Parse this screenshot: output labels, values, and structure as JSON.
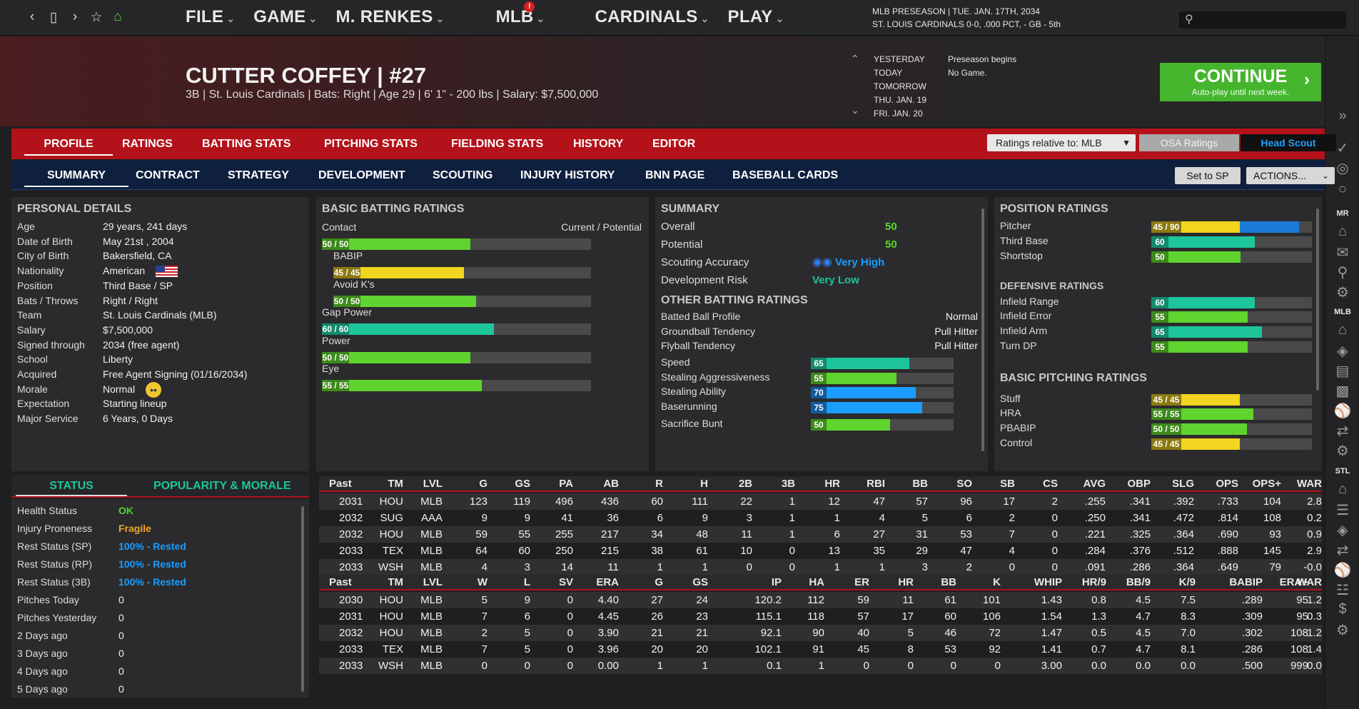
{
  "topbar": {
    "menu": [
      "FILE",
      "GAME",
      "M. RENKES",
      "MLB",
      "CARDINALS",
      "PLAY"
    ],
    "mlb_badge": "!",
    "info_line1": "MLB PRESEASON  |  TUE. JAN. 17TH, 2034",
    "info_line2": "ST. LOUIS CARDINALS  0-0, .000 PCT, - GB - 5th"
  },
  "player": {
    "name": "CUTTER COFFEY  |  #27",
    "sub": "3B | St. Louis Cardinals  |  Bats: Right  |  Age 29  |  6' 1\"  - 200 lbs  |  Salary: $7,500,000"
  },
  "calendar": {
    "dates": [
      "YESTERDAY",
      "TODAY",
      "TOMORROW",
      "THU. JAN. 19",
      "FRI. JAN. 20"
    ],
    "events": [
      "Preseason begins",
      "No Game."
    ]
  },
  "continue": {
    "title": "CONTINUE",
    "sub": "Auto-play until next week."
  },
  "tabs1": {
    "items": [
      "PROFILE",
      "RATINGS",
      "BATTING STATS",
      "PITCHING STATS",
      "FIELDING STATS",
      "HISTORY",
      "EDITOR"
    ],
    "ratings_relative": "Ratings relative to: MLB",
    "osa": "OSA Ratings",
    "scout": "Head Scout"
  },
  "tabs2": {
    "items": [
      "SUMMARY",
      "CONTRACT",
      "STRATEGY",
      "DEVELOPMENT",
      "SCOUTING",
      "INJURY HISTORY",
      "BNN PAGE",
      "BASEBALL CARDS"
    ],
    "set_sp": "Set to SP",
    "actions": "ACTIONS..."
  },
  "personal": {
    "title": "PERSONAL DETAILS",
    "rows": [
      [
        "Age",
        "29 years, 241 days"
      ],
      [
        "Date of Birth",
        "May 21st , 2004"
      ],
      [
        "City of Birth",
        "Bakersfield, CA"
      ],
      [
        "Nationality",
        "American"
      ],
      [
        "Position",
        "Third Base / SP"
      ],
      [
        "Bats / Throws",
        "Right / Right"
      ],
      [
        "Team",
        "St. Louis Cardinals (MLB)"
      ],
      [
        "Salary",
        "$7,500,000"
      ],
      [
        "Signed through",
        "2034 (free agent)"
      ],
      [
        "School",
        "Liberty"
      ],
      [
        "Acquired",
        "Free Agent Signing (01/16/2034)"
      ],
      [
        "Morale",
        "Normal"
      ],
      [
        "Expectation",
        "Starting lineup"
      ],
      [
        "Major Service",
        "6 Years, 0 Days"
      ]
    ]
  },
  "batting": {
    "title": "BASIC BATTING RATINGS",
    "cur_pot": "Current / Potential",
    "items": [
      {
        "label": "Contact",
        "tag": "50 / 50",
        "value": 50,
        "color": "#5fd42e"
      },
      {
        "label": "BABIP",
        "tag": "45 / 45",
        "value": 45,
        "color": "#f2d51e"
      },
      {
        "label": "Avoid K's",
        "tag": "50 / 50",
        "value": 50,
        "color": "#5fd42e"
      },
      {
        "label": "Gap Power",
        "tag": "60 / 60",
        "value": 60,
        "color": "#1dc59b"
      },
      {
        "label": "Power",
        "tag": "50 / 50",
        "value": 50,
        "color": "#5fd42e"
      },
      {
        "label": "Eye",
        "tag": "55 / 55",
        "value": 55,
        "color": "#5fd42e"
      }
    ]
  },
  "summary": {
    "title": "SUMMARY",
    "overall_label": "Overall",
    "overall": "50",
    "potential_label": "Potential",
    "potential": "50",
    "scouting_label": "Scouting Accuracy",
    "scouting": "Very High",
    "devrisk_label": "Development Risk",
    "devrisk": "Very Low",
    "other_title": "OTHER BATTING RATINGS",
    "other": [
      [
        "Batted Ball Profile",
        "Normal"
      ],
      [
        "Groundball Tendency",
        "Pull Hitter"
      ],
      [
        "Flyball Tendency",
        "Pull Hitter"
      ]
    ],
    "run": [
      {
        "label": "Speed",
        "value": 65,
        "color": "#1dc59b"
      },
      {
        "label": "Stealing Aggressiveness",
        "value": 55,
        "color": "#5fd42e"
      },
      {
        "label": "Stealing Ability",
        "value": 70,
        "color": "#1a9dff"
      },
      {
        "label": "Baserunning",
        "value": 75,
        "color": "#1a9dff"
      },
      {
        "label": "Sacrifice Bunt",
        "value": 50,
        "color": "#5fd42e"
      }
    ]
  },
  "position": {
    "title": "POSITION RATINGS",
    "items": [
      {
        "label": "Pitcher",
        "tag": "45 / 90",
        "value": 45,
        "pot": 90,
        "color": "#f2d51e"
      },
      {
        "label": "Third Base",
        "tag": "60",
        "value": 60,
        "color": "#1dc59b"
      },
      {
        "label": "Shortstop",
        "tag": "50",
        "value": 50,
        "color": "#5fd42e"
      }
    ],
    "def_title": "DEFENSIVE RATINGS",
    "def": [
      {
        "label": "Infield Range",
        "tag": "60",
        "value": 60,
        "color": "#1dc59b"
      },
      {
        "label": "Infield Error",
        "tag": "55",
        "value": 55,
        "color": "#5fd42e"
      },
      {
        "label": "Infield Arm",
        "tag": "65",
        "value": 65,
        "color": "#1dc59b"
      },
      {
        "label": "Turn DP",
        "tag": "55",
        "value": 55,
        "color": "#5fd42e"
      }
    ],
    "pitch_title": "BASIC PITCHING RATINGS",
    "pitch": [
      {
        "label": "Stuff",
        "tag": "45 / 45",
        "value": 45,
        "color": "#f2d51e"
      },
      {
        "label": "HRA",
        "tag": "55 / 55",
        "value": 55,
        "color": "#5fd42e"
      },
      {
        "label": "PBABIP",
        "tag": "50 / 50",
        "value": 50,
        "color": "#5fd42e"
      },
      {
        "label": "Control",
        "tag": "45 / 45",
        "value": 45,
        "color": "#f2d51e"
      }
    ]
  },
  "status": {
    "tab1": "STATUS",
    "tab2": "POPULARITY & MORALE",
    "rows": [
      [
        "Health Status",
        "OK",
        "#4fd42e"
      ],
      [
        "Injury Proneness",
        "Fragile",
        "#f5a623"
      ],
      [
        "Rest Status (SP)",
        "100% - Rested",
        "#1a9dff"
      ],
      [
        "Rest Status (RP)",
        "100% - Rested",
        "#1a9dff"
      ],
      [
        "Rest Status (3B)",
        "100% - Rested",
        "#1a9dff"
      ],
      [
        "Pitches Today",
        "0",
        ""
      ],
      [
        "Pitches Yesterday",
        "0",
        ""
      ],
      [
        "2 Days ago",
        "0",
        ""
      ],
      [
        "3 Days ago",
        "0",
        ""
      ],
      [
        "4 Days ago",
        "0",
        ""
      ],
      [
        "5 Days ago",
        "0",
        ""
      ]
    ]
  },
  "batting_stats": {
    "headers": [
      "Past Yrs.",
      "TM",
      "LVL",
      "G",
      "GS",
      "PA",
      "AB",
      "R",
      "H",
      "2B",
      "3B",
      "HR",
      "RBI",
      "BB",
      "SO",
      "SB",
      "CS",
      "AVG",
      "OBP",
      "SLG",
      "OPS",
      "OPS+",
      "WAR"
    ],
    "rows": [
      [
        "2031",
        "HOU",
        "MLB",
        "123",
        "119",
        "496",
        "436",
        "60",
        "111",
        "22",
        "1",
        "12",
        "47",
        "57",
        "96",
        "17",
        "2",
        ".255",
        ".341",
        ".392",
        ".733",
        "104",
        "2.8"
      ],
      [
        "2032",
        "SUG",
        "AAA",
        "9",
        "9",
        "41",
        "36",
        "6",
        "9",
        "3",
        "1",
        "1",
        "4",
        "5",
        "6",
        "2",
        "0",
        ".250",
        ".341",
        ".472",
        ".814",
        "108",
        "0.2"
      ],
      [
        "2032",
        "HOU",
        "MLB",
        "59",
        "55",
        "255",
        "217",
        "34",
        "48",
        "11",
        "1",
        "6",
        "27",
        "31",
        "53",
        "7",
        "0",
        ".221",
        ".325",
        ".364",
        ".690",
        "93",
        "0.9"
      ],
      [
        "2033",
        "TEX",
        "MLB",
        "64",
        "60",
        "250",
        "215",
        "38",
        "61",
        "10",
        "0",
        "13",
        "35",
        "29",
        "47",
        "4",
        "0",
        ".284",
        ".376",
        ".512",
        ".888",
        "145",
        "2.9"
      ],
      [
        "2033",
        "WSH",
        "MLB",
        "4",
        "3",
        "14",
        "11",
        "1",
        "1",
        "0",
        "0",
        "1",
        "1",
        "3",
        "2",
        "0",
        "0",
        ".091",
        ".286",
        ".364",
        ".649",
        "79",
        "-0.0"
      ]
    ]
  },
  "pitching_stats": {
    "headers": [
      "Past Yrs.",
      "TM",
      "LVL",
      "W",
      "L",
      "SV",
      "ERA",
      "G",
      "GS",
      "IP",
      "HA",
      "ER",
      "HR",
      "BB",
      "K",
      "WHIP",
      "HR/9",
      "BB/9",
      "K/9",
      "BABIP",
      "ERA+",
      "WAR"
    ],
    "rows": [
      [
        "2030",
        "HOU",
        "MLB",
        "5",
        "9",
        "0",
        "4.40",
        "27",
        "24",
        "120.2",
        "112",
        "59",
        "11",
        "61",
        "101",
        "1.43",
        "0.8",
        "4.5",
        "7.5",
        ".289",
        "95",
        "1.2"
      ],
      [
        "2031",
        "HOU",
        "MLB",
        "7",
        "6",
        "0",
        "4.45",
        "26",
        "23",
        "115.1",
        "118",
        "57",
        "17",
        "60",
        "106",
        "1.54",
        "1.3",
        "4.7",
        "8.3",
        ".309",
        "95",
        "0.3"
      ],
      [
        "2032",
        "HOU",
        "MLB",
        "2",
        "5",
        "0",
        "3.90",
        "21",
        "21",
        "92.1",
        "90",
        "40",
        "5",
        "46",
        "72",
        "1.47",
        "0.5",
        "4.5",
        "7.0",
        ".302",
        "108",
        "1.2"
      ],
      [
        "2033",
        "TEX",
        "MLB",
        "7",
        "5",
        "0",
        "3.96",
        "20",
        "20",
        "102.1",
        "91",
        "45",
        "8",
        "53",
        "92",
        "1.41",
        "0.7",
        "4.7",
        "8.1",
        ".286",
        "108",
        "1.4"
      ],
      [
        "2033",
        "WSH",
        "MLB",
        "0",
        "0",
        "0",
        "0.00",
        "1",
        "1",
        "0.1",
        "1",
        "0",
        "0",
        "0",
        "0",
        "3.00",
        "0.0",
        "0.0",
        "0.0",
        ".500",
        "999",
        "0.0"
      ]
    ]
  },
  "sidebar": {
    "labels": [
      "MR",
      "MLB",
      "STL"
    ]
  }
}
